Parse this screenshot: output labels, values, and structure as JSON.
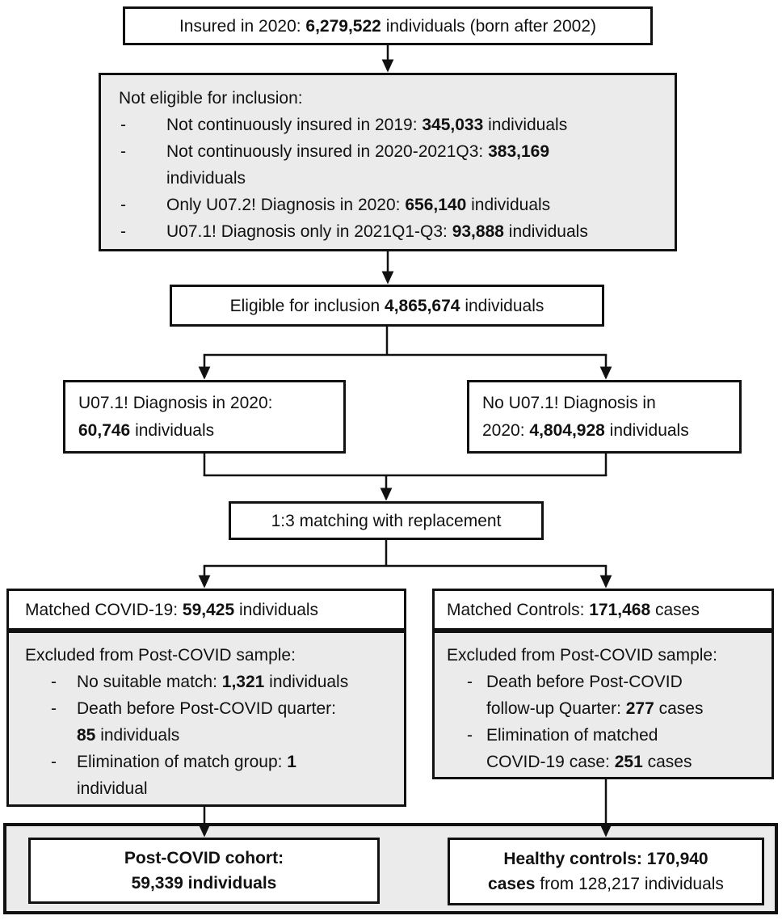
{
  "figure": {
    "colors": {
      "fill_gray": "#ebebeb",
      "fill_white": "#ffffff",
      "border": "#111111"
    },
    "boxes": {
      "insured": {
        "segments": [
          {
            "t": "Insured in 2020: "
          },
          {
            "t": "6,279,522",
            "b": true
          },
          {
            "t": " individuals (born after 2002)"
          }
        ]
      },
      "not_eligible": {
        "title": "Not eligible for inclusion:",
        "items": [
          {
            "segments": [
              {
                "t": "Not continuously insured in 2019: "
              },
              {
                "t": "345,033",
                "b": true
              },
              {
                "t": " individuals"
              }
            ]
          },
          {
            "segments": [
              {
                "t": "Not continuously insured in 2020-2021Q3: "
              },
              {
                "t": "383,169",
                "b": true
              },
              {
                "br": true
              },
              {
                "t": "individuals"
              }
            ]
          },
          {
            "segments": [
              {
                "t": "Only U07.2! Diagnosis in 2020: "
              },
              {
                "t": "656,140",
                "b": true
              },
              {
                "t": " individuals"
              }
            ]
          },
          {
            "segments": [
              {
                "t": "U07.1! Diagnosis only in 2021Q1-Q3: "
              },
              {
                "t": "93,888",
                "b": true
              },
              {
                "t": " individuals"
              }
            ]
          }
        ]
      },
      "eligible": {
        "segments": [
          {
            "t": "Eligible for inclusion "
          },
          {
            "t": "4,865,674",
            "b": true
          },
          {
            "t": " individuals"
          }
        ]
      },
      "covid_2020": {
        "segments": [
          {
            "t": "U07.1! Diagnosis in 2020:"
          },
          {
            "br": true
          },
          {
            "t": "60,746",
            "b": true
          },
          {
            "t": " individuals"
          }
        ]
      },
      "no_covid_2020": {
        "segments": [
          {
            "t": "No U07.1! Diagnosis in"
          },
          {
            "br": true
          },
          {
            "t": "2020: "
          },
          {
            "t": "4,804,928",
            "b": true
          },
          {
            "t": " individuals"
          }
        ]
      },
      "matching": {
        "label": "1:3 matching with replacement"
      },
      "matched_covid": {
        "segments": [
          {
            "t": "Matched COVID-19: "
          },
          {
            "t": "59,425",
            "b": true
          },
          {
            "t": " individuals"
          }
        ]
      },
      "matched_covid_excluded": {
        "title": "Excluded from Post-COVID sample:",
        "items": [
          {
            "segments": [
              {
                "t": "No suitable match: "
              },
              {
                "t": "1,321",
                "b": true
              },
              {
                "t": " individuals"
              }
            ]
          },
          {
            "segments": [
              {
                "t": "Death before Post-COVID quarter:"
              },
              {
                "br": true
              },
              {
                "t": "85",
                "b": true
              },
              {
                "t": " individuals"
              }
            ]
          },
          {
            "segments": [
              {
                "t": "Elimination of match group: "
              },
              {
                "t": "1",
                "b": true
              },
              {
                "br": true
              },
              {
                "t": "individual"
              }
            ]
          }
        ]
      },
      "matched_controls": {
        "segments": [
          {
            "t": "Matched Controls: "
          },
          {
            "t": "171,468",
            "b": true
          },
          {
            "t": " cases"
          }
        ]
      },
      "matched_controls_excluded": {
        "title": "Excluded from Post-COVID sample:",
        "items": [
          {
            "segments": [
              {
                "t": "Death before Post-COVID"
              },
              {
                "br": true
              },
              {
                "t": "follow-up Quarter: "
              },
              {
                "t": "277",
                "b": true
              },
              {
                "t": " cases"
              }
            ]
          },
          {
            "segments": [
              {
                "t": "Elimination of matched"
              },
              {
                "br": true
              },
              {
                "t": "COVID-19 case: "
              },
              {
                "t": "251",
                "b": true
              },
              {
                "t": " cases"
              }
            ]
          }
        ]
      },
      "post_covid_cohort": {
        "segments": [
          {
            "t": "Post-COVID cohort:",
            "b": true
          },
          {
            "br": true
          },
          {
            "t": "59,339 individuals",
            "b": true
          }
        ]
      },
      "healthy_controls": {
        "segments": [
          {
            "t": "Healthy controls: 170,940",
            "b": true
          },
          {
            "br": true
          },
          {
            "t": "cases",
            "b": true
          },
          {
            "t": " from 128,217 individuals"
          }
        ]
      }
    }
  }
}
